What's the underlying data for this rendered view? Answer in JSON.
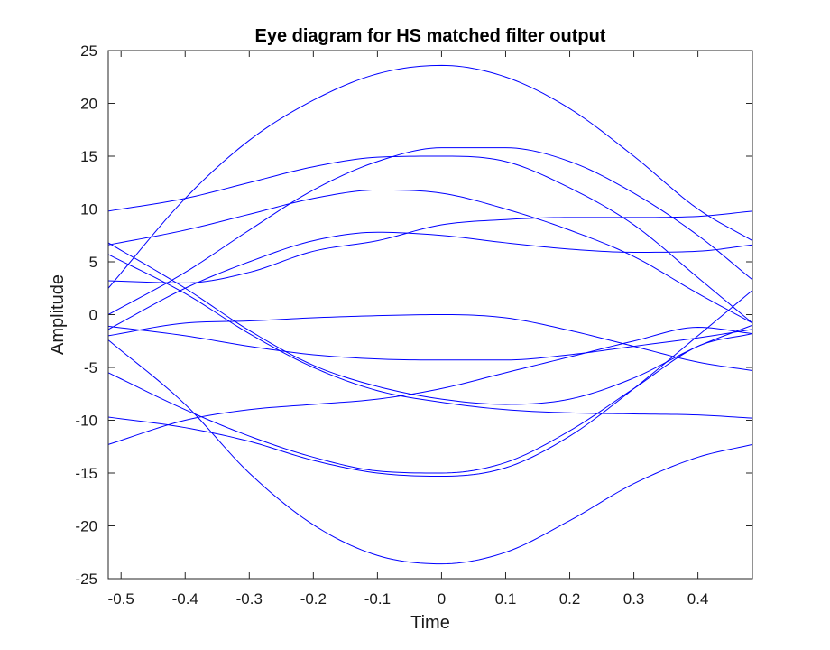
{
  "chart_data": {
    "type": "line",
    "title": "Eye diagram for HS matched filter output",
    "xlabel": "Time",
    "ylabel": "Amplitude",
    "xlim": [
      -0.52,
      0.485
    ],
    "ylim": [
      -25,
      25
    ],
    "xticks": [
      -0.5,
      -0.4,
      -0.3,
      -0.2,
      -0.1,
      0,
      0.1,
      0.2,
      0.3,
      0.4
    ],
    "xtick_labels": [
      "-0.5",
      "-0.4",
      "-0.3",
      "-0.2",
      "-0.1",
      "0",
      "0.1",
      "0.2",
      "0.3",
      "0.4"
    ],
    "yticks": [
      -25,
      -20,
      -15,
      -10,
      -5,
      0,
      5,
      10,
      15,
      20,
      25
    ],
    "ytick_labels": [
      "-25",
      "-20",
      "-15",
      "-10",
      "-5",
      "0",
      "5",
      "10",
      "15",
      "20",
      "25"
    ],
    "grid": false,
    "box": true,
    "line_color": "#0000ff",
    "series": [
      {
        "x": [
          -0.52,
          -0.4,
          -0.3,
          -0.2,
          -0.1,
          0,
          0.1,
          0.2,
          0.3,
          0.4,
          0.485
        ],
        "y": [
          2.5,
          11.0,
          16.5,
          20.3,
          22.8,
          23.6,
          22.5,
          19.5,
          15.0,
          10.0,
          7.0
        ]
      },
      {
        "x": [
          -0.52,
          -0.4,
          -0.3,
          -0.2,
          -0.1,
          0,
          0.1,
          0.2,
          0.3,
          0.4,
          0.485
        ],
        "y": [
          -2.4,
          -8.5,
          -15.0,
          -19.9,
          -22.8,
          -23.6,
          -22.5,
          -19.5,
          -16.0,
          -13.5,
          -12.3
        ]
      },
      {
        "x": [
          -0.52,
          -0.4,
          -0.3,
          -0.2,
          -0.1,
          0,
          0.1,
          0.2,
          0.3,
          0.4,
          0.485
        ],
        "y": [
          9.8,
          11.0,
          12.5,
          14.0,
          14.9,
          15.0,
          14.5,
          12.0,
          8.5,
          3.5,
          -0.8
        ]
      },
      {
        "x": [
          -0.52,
          -0.4,
          -0.3,
          -0.2,
          -0.1,
          0,
          0.1,
          0.2,
          0.3,
          0.4,
          0.485
        ],
        "y": [
          0.0,
          4.0,
          8.0,
          11.8,
          14.5,
          15.8,
          15.8,
          14.5,
          11.5,
          7.5,
          3.3
        ]
      },
      {
        "x": [
          -0.52,
          -0.4,
          -0.3,
          -0.2,
          -0.1,
          0,
          0.1,
          0.2,
          0.3,
          0.4,
          0.485
        ],
        "y": [
          6.6,
          8.0,
          9.5,
          11.0,
          11.8,
          11.5,
          10.0,
          8.0,
          5.5,
          2.0,
          -0.8
        ]
      },
      {
        "x": [
          -0.52,
          -0.4,
          -0.3,
          -0.2,
          -0.1,
          0,
          0.1,
          0.2,
          0.3,
          0.4,
          0.485
        ],
        "y": [
          -1.4,
          2.5,
          5.0,
          7.0,
          7.8,
          7.5,
          6.8,
          6.2,
          5.9,
          6.0,
          6.6
        ]
      },
      {
        "x": [
          -0.52,
          -0.4,
          -0.3,
          -0.2,
          -0.1,
          0,
          0.1,
          0.2,
          0.3,
          0.4,
          0.485
        ],
        "y": [
          3.2,
          3.0,
          4.0,
          6.0,
          7.0,
          8.5,
          9.0,
          9.2,
          9.2,
          9.3,
          9.8
        ]
      },
      {
        "x": [
          -0.52,
          -0.4,
          -0.3,
          -0.2,
          -0.1,
          0,
          0.1,
          0.2,
          0.3,
          0.4,
          0.485
        ],
        "y": [
          -2.0,
          -0.8,
          -0.6,
          -0.3,
          -0.1,
          0.0,
          -0.3,
          -1.5,
          -3.0,
          -4.5,
          -5.3
        ]
      },
      {
        "x": [
          -0.52,
          -0.4,
          -0.3,
          -0.2,
          -0.1,
          0,
          0.1,
          0.2,
          0.3,
          0.4,
          0.485
        ],
        "y": [
          -1.1,
          -2.0,
          -3.0,
          -3.8,
          -4.2,
          -4.3,
          -4.3,
          -3.8,
          -3.0,
          -2.2,
          -1.4
        ]
      },
      {
        "x": [
          -0.52,
          -0.4,
          -0.3,
          -0.2,
          -0.1,
          0,
          0.1,
          0.2,
          0.3,
          0.4,
          0.485
        ],
        "y": [
          6.8,
          2.5,
          -1.5,
          -4.8,
          -6.8,
          -8.0,
          -8.5,
          -8.0,
          -6.0,
          -3.0,
          -1.0
        ]
      },
      {
        "x": [
          -0.52,
          -0.4,
          -0.3,
          -0.2,
          -0.1,
          0,
          0.1,
          0.2,
          0.3,
          0.4,
          0.485
        ],
        "y": [
          5.7,
          2.0,
          -1.8,
          -5.0,
          -7.2,
          -8.3,
          -9.0,
          -9.3,
          -9.4,
          -9.5,
          -9.8
        ]
      },
      {
        "x": [
          -0.52,
          -0.4,
          -0.3,
          -0.2,
          -0.1,
          0,
          0.1,
          0.2,
          0.3,
          0.4,
          0.485
        ],
        "y": [
          -5.5,
          -9.0,
          -11.5,
          -13.5,
          -14.8,
          -15.0,
          -14.0,
          -11.0,
          -7.0,
          -3.0,
          -1.8
        ]
      },
      {
        "x": [
          -0.52,
          -0.4,
          -0.3,
          -0.2,
          -0.1,
          0,
          0.1,
          0.2,
          0.3,
          0.4,
          0.485
        ],
        "y": [
          -9.7,
          -10.7,
          -12.0,
          -13.8,
          -15.0,
          -15.3,
          -14.5,
          -11.5,
          -7.0,
          -2.0,
          2.3
        ]
      },
      {
        "x": [
          -0.52,
          -0.4,
          -0.3,
          -0.2,
          -0.1,
          0,
          0.1,
          0.2,
          0.3,
          0.4,
          0.485
        ],
        "y": [
          -12.3,
          -10.0,
          -9.0,
          -8.5,
          -8.0,
          -7.0,
          -5.5,
          -4.0,
          -2.5,
          -1.2,
          -1.8
        ]
      }
    ]
  }
}
